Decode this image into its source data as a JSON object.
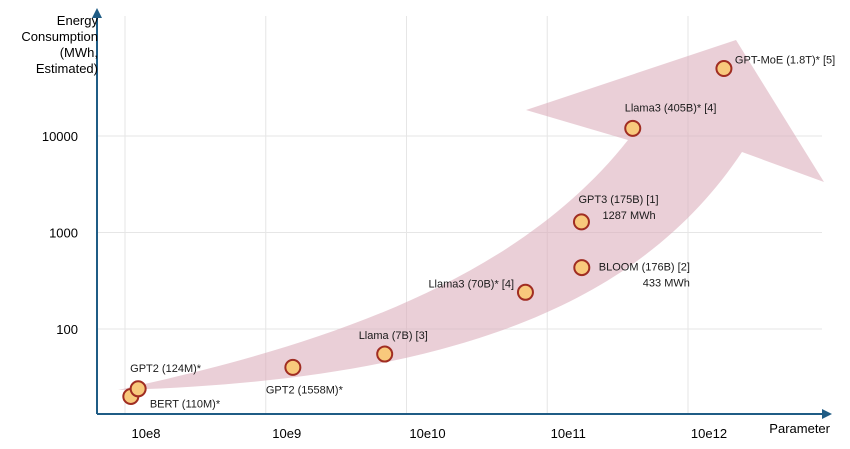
{
  "chart_data": {
    "type": "scatter",
    "title": "",
    "xlabel": "Parameter",
    "ylabel_lines": [
      "Energy",
      "Consumption",
      "(MWh,",
      "Estimated)"
    ],
    "x_scale": "log",
    "y_scale": "log",
    "x_ticks": [
      {
        "value": 100000000,
        "label": "10e8"
      },
      {
        "value": 1000000000,
        "label": "10e9"
      },
      {
        "value": 10000000000,
        "label": "10e10"
      },
      {
        "value": 100000000000,
        "label": "10e11"
      },
      {
        "value": 1000000000000,
        "label": "10e12"
      }
    ],
    "y_ticks": [
      {
        "value": 100,
        "label": "100"
      },
      {
        "value": 1000,
        "label": "1000"
      },
      {
        "value": 10000,
        "label": "10000"
      }
    ],
    "grid": true,
    "trend_arrow": true,
    "colors": {
      "axis": "#1f5c85",
      "marker_fill": "#f8c97c",
      "marker_stroke": "#a02d22",
      "arrow": "#d9a7b7",
      "grid": "#e6e6e6"
    },
    "points": [
      {
        "label_lines": [
          "BERT (110M)*"
        ],
        "x": 110000000,
        "y": 20
      },
      {
        "label_lines": [
          "GPT2 (124M)*"
        ],
        "x": 124000000,
        "y": 24
      },
      {
        "label_lines": [
          "GPT2 (1558M)*"
        ],
        "x": 1558000000,
        "y": 40
      },
      {
        "label_lines": [
          "Llama (7B) [3]"
        ],
        "x": 7000000000,
        "y": 55
      },
      {
        "label_lines": [
          "Llama3 (70B)* [4]"
        ],
        "x": 70000000000,
        "y": 240
      },
      {
        "label_lines": [
          "BLOOM (176B) [2]",
          "433 MWh"
        ],
        "x": 176000000000,
        "y": 433
      },
      {
        "label_lines": [
          "GPT3 (175B) [1]",
          "1287 MWh"
        ],
        "x": 175000000000,
        "y": 1287
      },
      {
        "label_lines": [
          "Llama3 (405B)* [4]"
        ],
        "x": 405000000000,
        "y": 12000
      },
      {
        "label_lines": [
          "GPT-MoE (1.8T)* [5]"
        ],
        "x": 1800000000000,
        "y": 50000
      }
    ]
  }
}
